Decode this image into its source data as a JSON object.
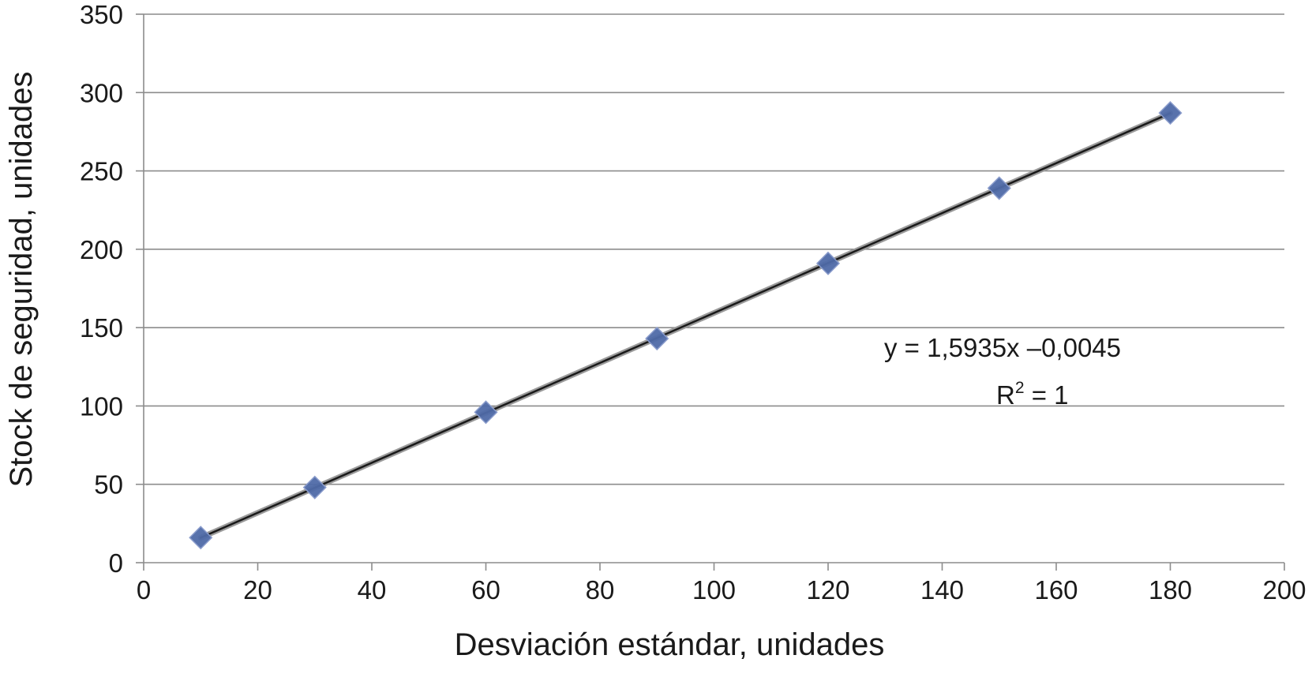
{
  "chart_data": {
    "type": "scatter",
    "title": "",
    "xlabel": "Desviación estándar, unidades",
    "ylabel": "Stock de seguridad, unidades",
    "xlim": [
      0,
      200
    ],
    "ylim": [
      0,
      350
    ],
    "x_ticks": [
      0,
      20,
      40,
      60,
      80,
      100,
      120,
      140,
      160,
      180,
      200
    ],
    "y_ticks": [
      0,
      50,
      100,
      150,
      200,
      250,
      300,
      350
    ],
    "grid": "horizontal",
    "legend": "none",
    "series": [
      {
        "x": [
          10,
          30,
          60,
          90,
          120,
          150,
          180
        ],
        "y": [
          16,
          48,
          96,
          143,
          191,
          239,
          287
        ],
        "marker": "diamond",
        "color": "#4f6aa8"
      }
    ],
    "trendline": {
      "slope": 1.5935,
      "intercept": -0.0045,
      "x_range": [
        10,
        180
      ],
      "color": "#1a1a1a"
    },
    "annotation": {
      "equation": "y = 1,5935x  –0,0045",
      "r2_prefix": "R",
      "r2_superscript": "2",
      "r2_suffix": " = 1"
    }
  }
}
